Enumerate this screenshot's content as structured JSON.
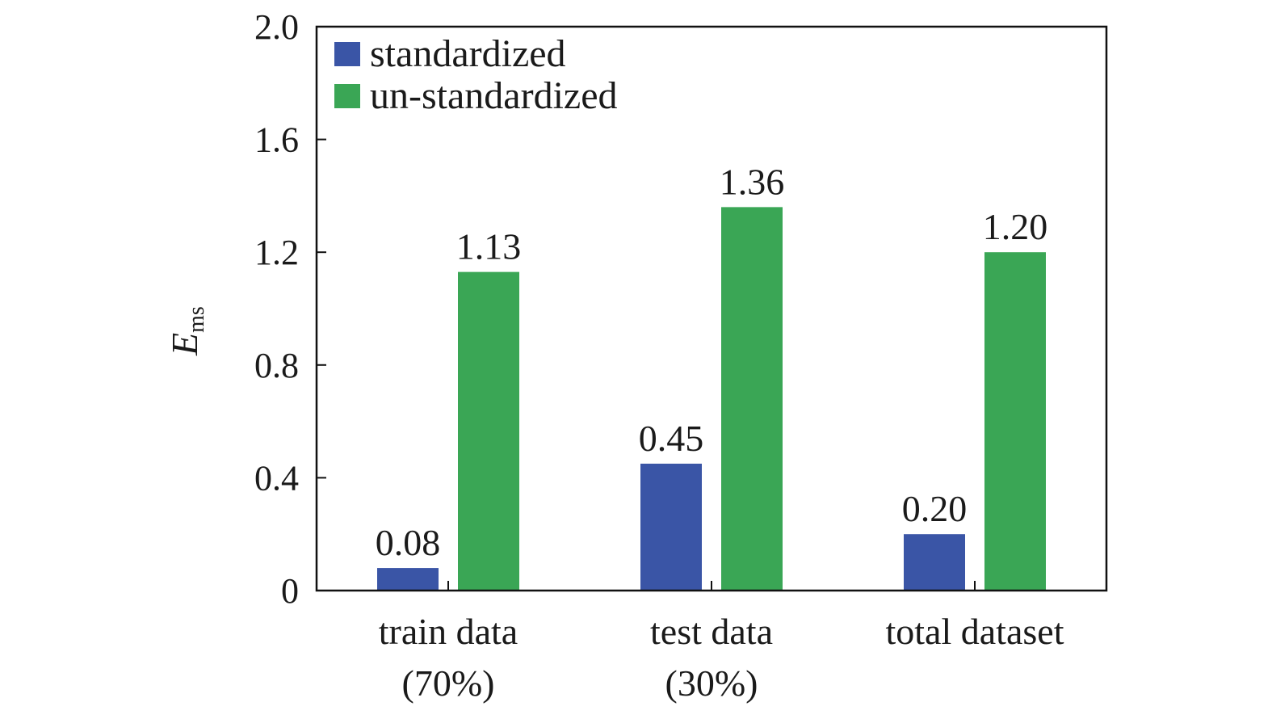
{
  "chart_data": {
    "type": "bar",
    "categories": [
      [
        "train data",
        "(70%)"
      ],
      [
        "test data",
        "(30%)"
      ],
      [
        "total dataset"
      ]
    ],
    "series": [
      {
        "name": "standardized",
        "color": "#3a55a6",
        "values": [
          0.08,
          0.45,
          0.2
        ],
        "labels": [
          "0.08",
          "0.45",
          "0.20"
        ]
      },
      {
        "name": "un-standardized",
        "color": "#3aa655",
        "values": [
          1.13,
          1.36,
          1.2
        ],
        "labels": [
          "1.13",
          "1.36",
          "1.20"
        ]
      }
    ],
    "ylabel": {
      "main": "E",
      "sub": "ms"
    },
    "ylim": [
      0,
      2.0
    ],
    "yticks": [
      0,
      0.4,
      0.8,
      1.2,
      1.6,
      2.0
    ],
    "ytick_labels": [
      "0",
      "0.4",
      "0.8",
      "1.2",
      "1.6",
      "2.0"
    ],
    "legend_position": "top-left",
    "grid": false
  }
}
